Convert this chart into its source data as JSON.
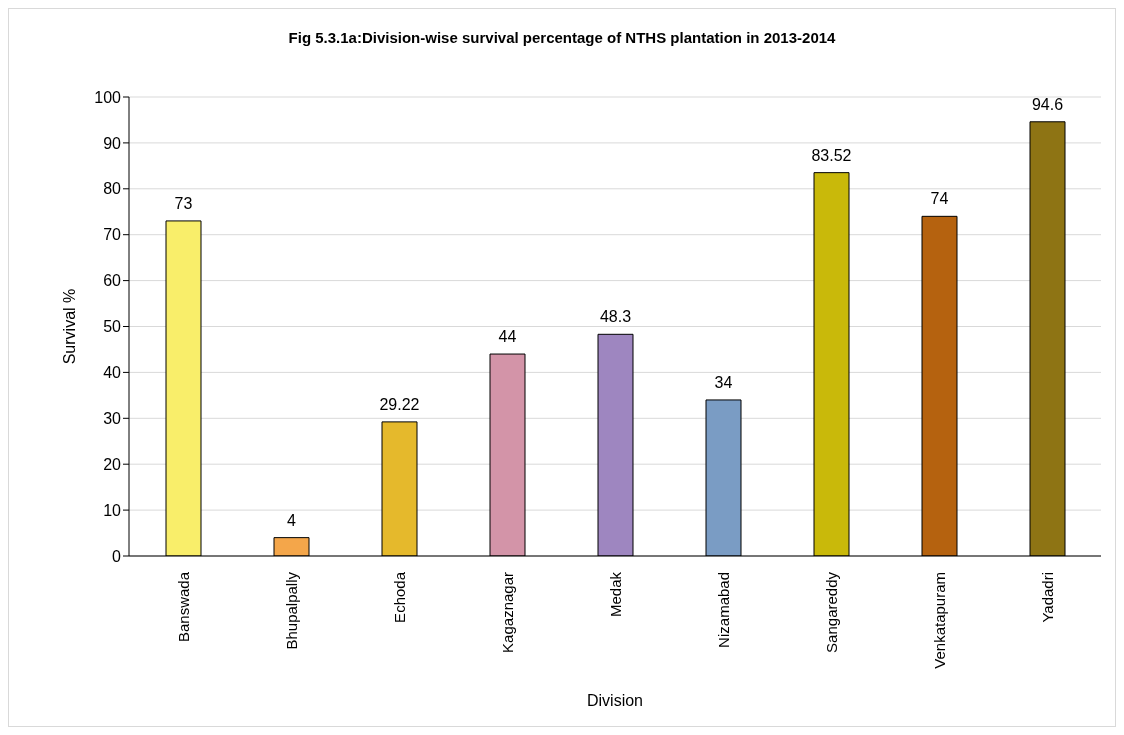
{
  "chart_data": {
    "type": "bar",
    "title": "Fig 5.3.1a:Division-wise survival percentage of NTHS plantation in 2013-2014",
    "xlabel": "Division",
    "ylabel": "Survival %",
    "categories": [
      "Banswada",
      "Bhupalpally",
      "Echoda",
      "Kagaznagar",
      "Medak",
      "Nizamabad",
      "Sangareddy",
      "Venkatapuram",
      "Yadadri"
    ],
    "values": [
      73,
      4,
      29.22,
      44,
      48.3,
      34,
      83.52,
      74,
      94.6
    ],
    "colors": [
      "#f9ee6a",
      "#f4a64a",
      "#e5b92c",
      "#d394a8",
      "#9e86c0",
      "#7a9cc4",
      "#c9b90a",
      "#b5620f",
      "#8e7414"
    ],
    "ylim": [
      0,
      100
    ],
    "yticks": [
      0,
      10,
      20,
      30,
      40,
      50,
      60,
      70,
      80,
      90,
      100
    ],
    "grid": "y",
    "data_labels": true,
    "legend": false
  }
}
